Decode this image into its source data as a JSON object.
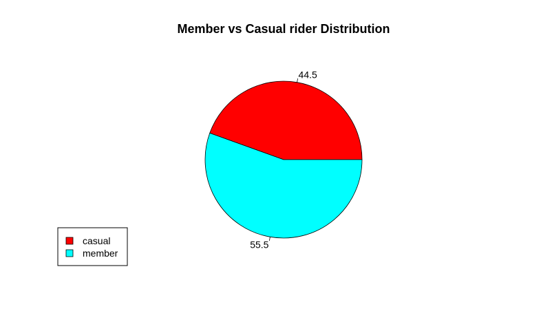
{
  "chart_data": {
    "type": "pie",
    "title": "Member vs Casual rider Distribution",
    "slices": [
      {
        "name": "casual",
        "value": 44.5,
        "label": "44.5",
        "color": "#ff0000"
      },
      {
        "name": "member",
        "value": 55.5,
        "label": "55.5",
        "color": "#00ffff"
      }
    ],
    "start_angle_deg": 0,
    "direction": "counterclockwise",
    "legend": {
      "position": "bottom-left",
      "entries": [
        "casual",
        "member"
      ]
    }
  }
}
